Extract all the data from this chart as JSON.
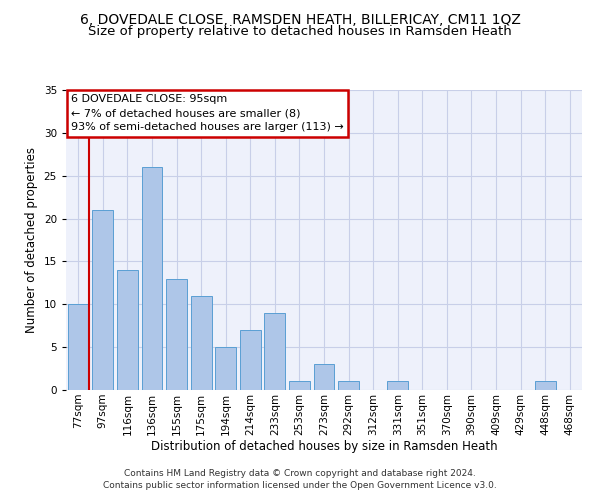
{
  "title1": "6, DOVEDALE CLOSE, RAMSDEN HEATH, BILLERICAY, CM11 1QZ",
  "title2": "Size of property relative to detached houses in Ramsden Heath",
  "xlabel": "Distribution of detached houses by size in Ramsden Heath",
  "ylabel": "Number of detached properties",
  "categories": [
    "77sqm",
    "97sqm",
    "116sqm",
    "136sqm",
    "155sqm",
    "175sqm",
    "194sqm",
    "214sqm",
    "233sqm",
    "253sqm",
    "273sqm",
    "292sqm",
    "312sqm",
    "331sqm",
    "351sqm",
    "370sqm",
    "390sqm",
    "409sqm",
    "429sqm",
    "448sqm",
    "468sqm"
  ],
  "values": [
    10,
    21,
    14,
    26,
    13,
    11,
    5,
    7,
    9,
    1,
    3,
    1,
    0,
    1,
    0,
    0,
    0,
    0,
    0,
    1,
    0
  ],
  "bar_color": "#aec6e8",
  "bar_edge_color": "#5a9fd4",
  "highlight_color": "#cc0000",
  "annotation_text": "6 DOVEDALE CLOSE: 95sqm\n← 7% of detached houses are smaller (8)\n93% of semi-detached houses are larger (113) →",
  "annotation_box_color": "#ffffff",
  "annotation_box_edge_color": "#cc0000",
  "ylim": [
    0,
    35
  ],
  "yticks": [
    0,
    5,
    10,
    15,
    20,
    25,
    30,
    35
  ],
  "footnote": "Contains HM Land Registry data © Crown copyright and database right 2024.\nContains public sector information licensed under the Open Government Licence v3.0.",
  "bg_color": "#eef1fb",
  "grid_color": "#c8cfe8",
  "title1_fontsize": 10,
  "title2_fontsize": 9.5,
  "axis_label_fontsize": 8.5,
  "tick_fontsize": 7.5,
  "footnote_fontsize": 6.5,
  "annotation_fontsize": 8
}
